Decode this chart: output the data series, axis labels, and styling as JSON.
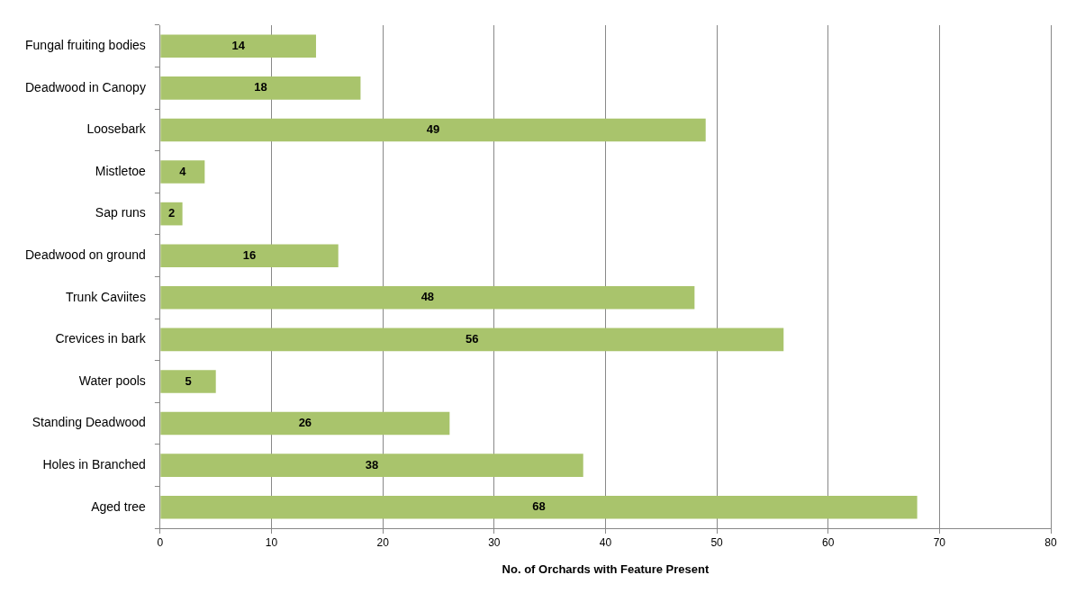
{
  "chart_data": {
    "type": "bar",
    "orientation": "horizontal",
    "xlabel": "No. of Orchards with Feature Present",
    "categories": [
      "Fungal fruiting bodies",
      "Deadwood in Canopy",
      "Loosebark",
      "Mistletoe",
      "Sap runs",
      "Deadwood on ground",
      "Trunk Caviites",
      "Crevices in bark",
      "Water pools",
      "Standing Deadwood",
      "Holes in Branched",
      "Aged tree"
    ],
    "values": [
      14,
      18,
      49,
      4,
      2,
      16,
      48,
      56,
      5,
      26,
      38,
      68
    ],
    "color": "#a9c46c",
    "xlim": [
      0,
      80
    ],
    "xticks": [
      0,
      10,
      20,
      30,
      40,
      50,
      60,
      70,
      80
    ],
    "grid": "x",
    "legend": false,
    "data_labels": true
  }
}
